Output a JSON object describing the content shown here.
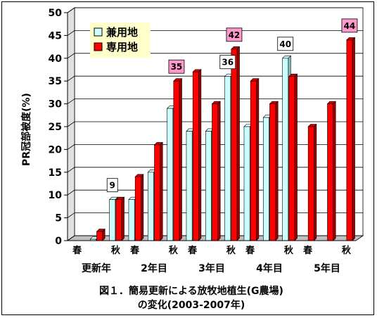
{
  "chart_data": {
    "type": "bar",
    "ylabel": "PR冠部被度(%)",
    "ylim": [
      0,
      50
    ],
    "yticks": [
      0,
      5,
      10,
      15,
      20,
      25,
      30,
      35,
      40,
      45,
      50
    ],
    "season_labels": [
      "春",
      "",
      "秋",
      "春",
      "",
      "秋",
      "春",
      "",
      "秋",
      "春",
      "",
      "秋",
      "春",
      "",
      "秋"
    ],
    "group_labels": [
      "更新年",
      "2年目",
      "3年目",
      "4年目",
      "5年目"
    ],
    "series": [
      {
        "name": "兼用地",
        "color": "#ccffff",
        "values": [
          0,
          0.3,
          9,
          9,
          15,
          29,
          24,
          24,
          36,
          25,
          27,
          40,
          0,
          0,
          0
        ]
      },
      {
        "name": "専用地",
        "color": "#ff0000",
        "values": [
          0,
          2,
          9,
          14,
          21,
          35,
          37,
          30,
          42,
          35,
          30,
          36,
          25,
          30,
          44
        ]
      }
    ],
    "data_labels": [
      {
        "index": 2,
        "series": 0,
        "text": "9",
        "bg": "#ffffff"
      },
      {
        "index": 5,
        "series": 1,
        "text": "35",
        "bg": "#ff99cc"
      },
      {
        "index": 8,
        "series": 0,
        "text": "36",
        "bg": "#ffffff"
      },
      {
        "index": 8,
        "series": 1,
        "text": "42",
        "bg": "#ff99cc"
      },
      {
        "index": 11,
        "series": 0,
        "text": "40",
        "bg": "#ffffff"
      },
      {
        "index": 14,
        "series": 1,
        "text": "44",
        "bg": "#ff99cc"
      }
    ],
    "legend_position": "top-left",
    "caption_line1": "図１．簡易更新による放牧地植生(G農場)",
    "caption_line2": "の変化(2003-2007年)"
  }
}
